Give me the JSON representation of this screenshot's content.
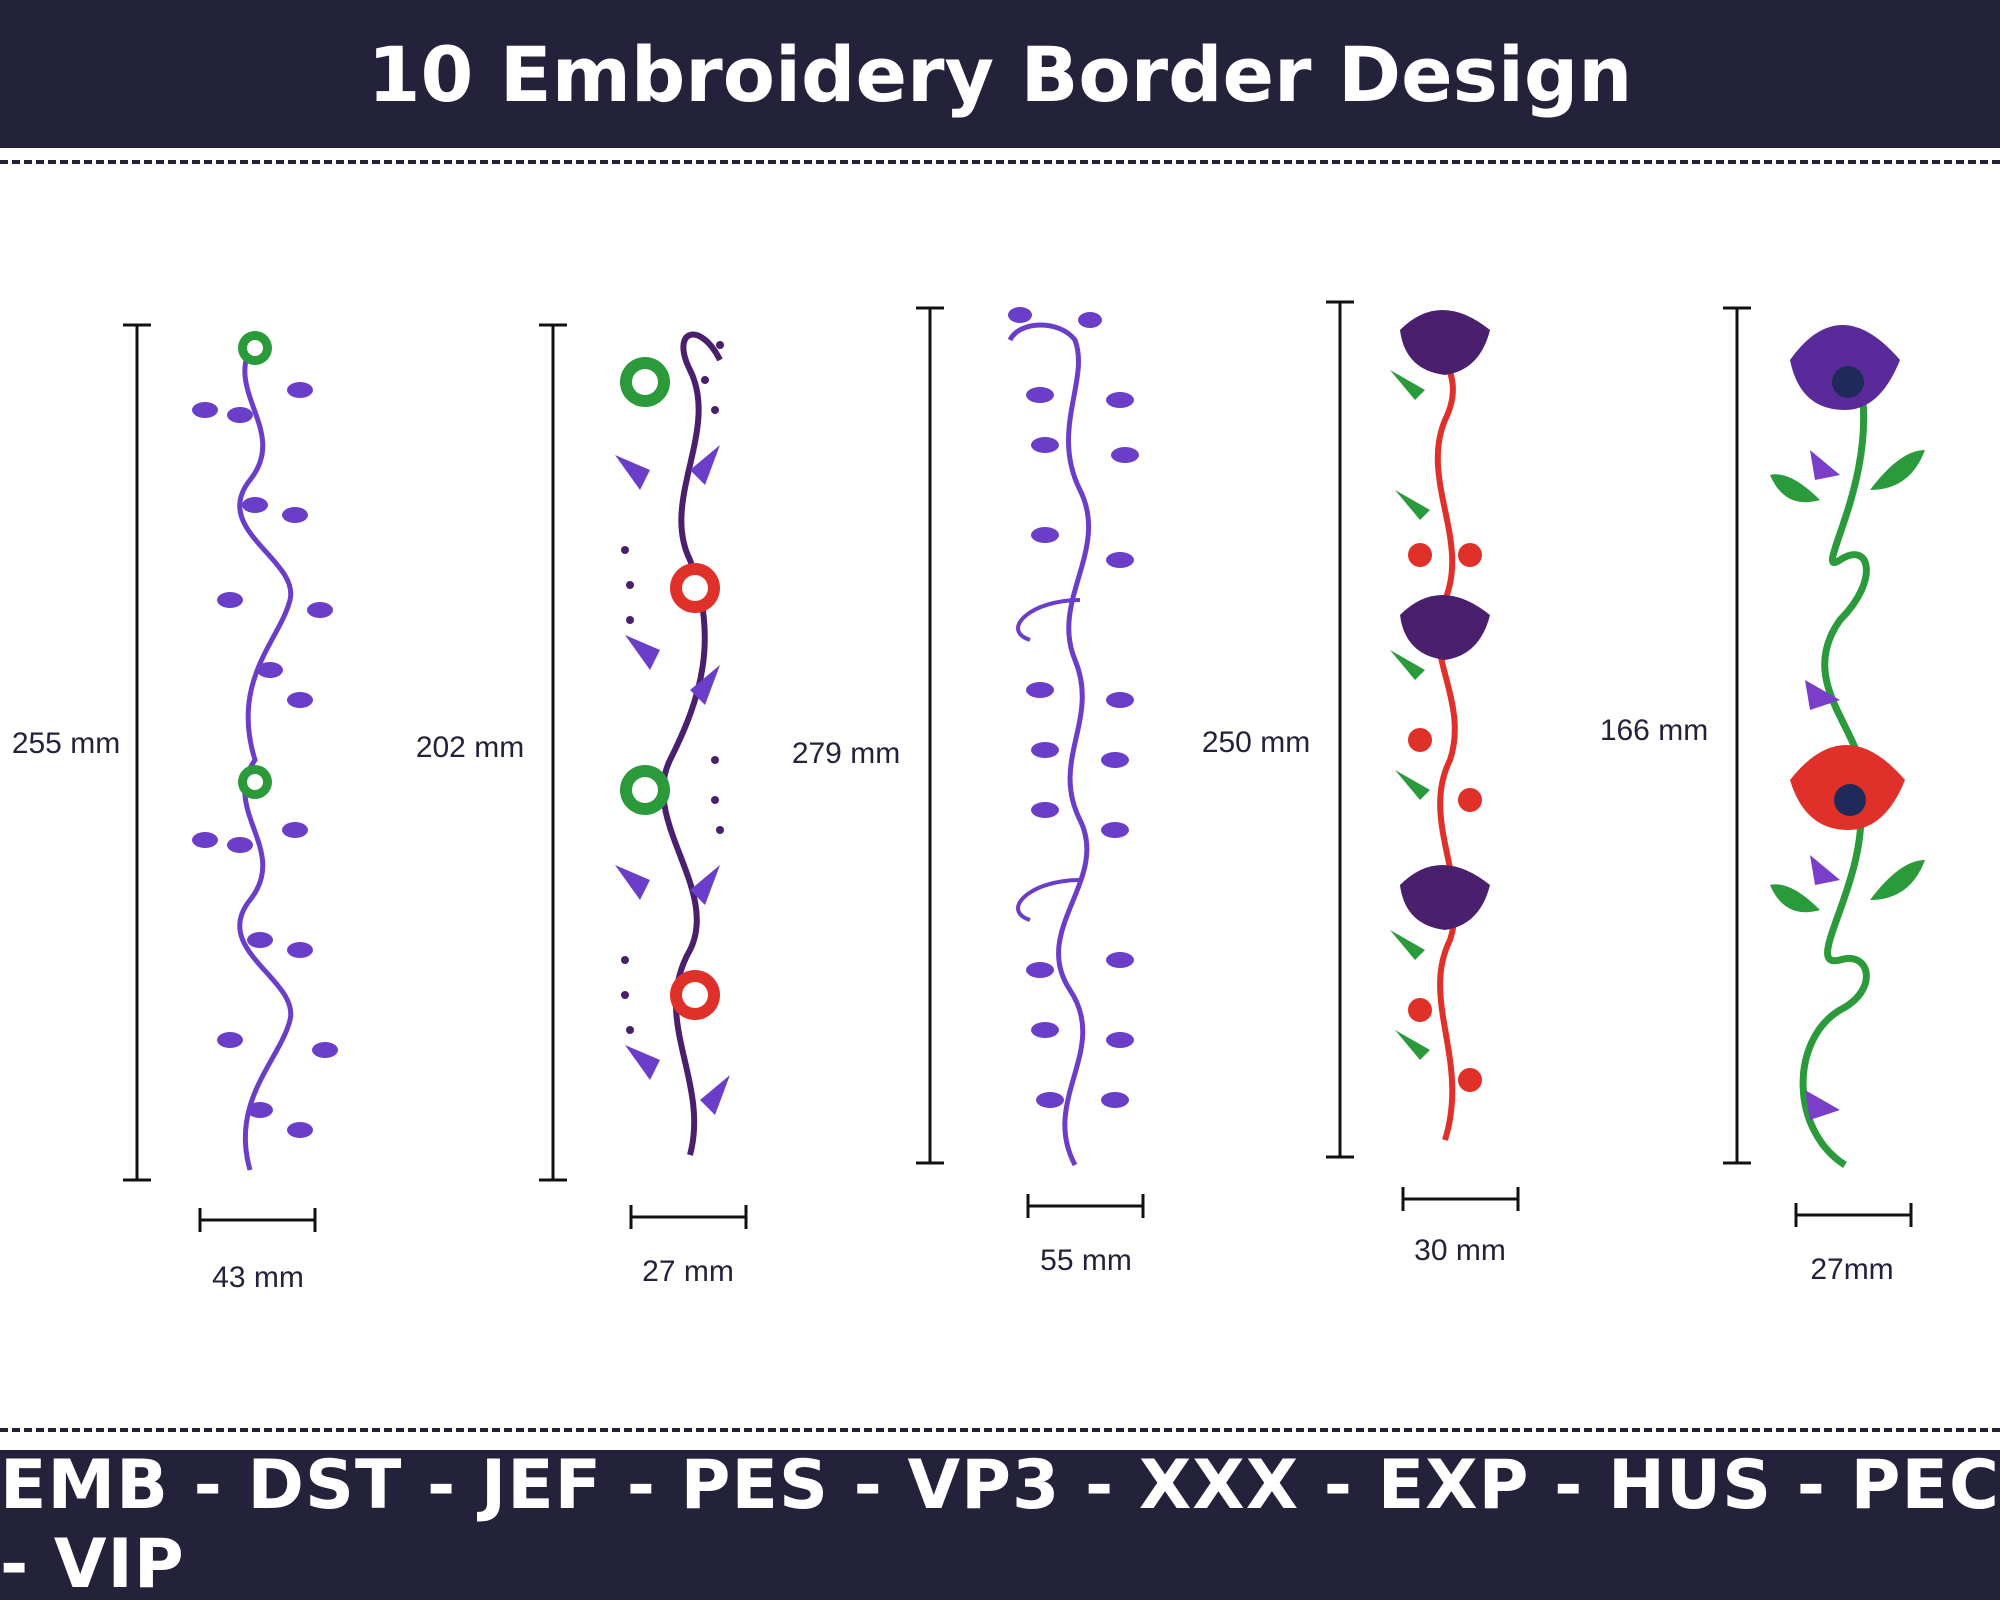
{
  "title": "10 Embroidery Border Design",
  "formats": "EMB - DST - JEF - PES - VP3 - XXX - EXP - HUS - PEC - VIP",
  "designs": [
    {
      "height_label": "255 mm",
      "width_label": "43 mm"
    },
    {
      "height_label": "202 mm",
      "width_label": "27 mm"
    },
    {
      "height_label": "279 mm",
      "width_label": "55 mm"
    },
    {
      "height_label": "250 mm",
      "width_label": "30 mm"
    },
    {
      "height_label": "166 mm",
      "width_label": "27mm"
    }
  ],
  "colors": {
    "band": "#23223a",
    "purple": "#6a3ec9",
    "green": "#2a9a3a",
    "red": "#e0302a",
    "dark_purple": "#4a1f6e"
  }
}
